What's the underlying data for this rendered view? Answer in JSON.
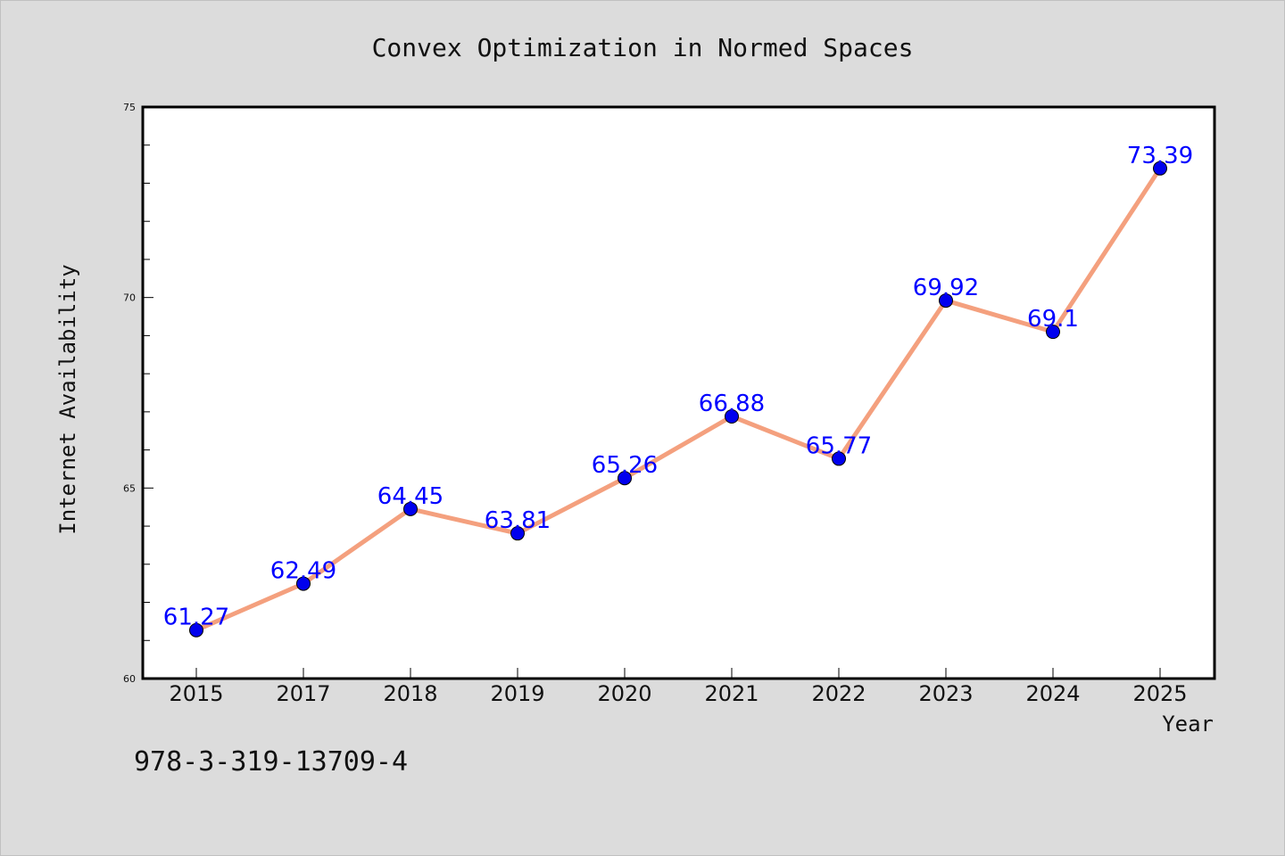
{
  "chart_data": {
    "type": "line",
    "title": "Convex Optimization in Normed Spaces",
    "xlabel": "Year",
    "ylabel": "Internet Availability",
    "categories": [
      "2015",
      "2017",
      "2018",
      "2019",
      "2020",
      "2021",
      "2022",
      "2023",
      "2024",
      "2025"
    ],
    "series": [
      {
        "values": [
          61.27,
          62.49,
          64.45,
          63.81,
          65.26,
          66.88,
          65.77,
          69.92,
          69.1,
          73.39
        ]
      }
    ],
    "data_labels": [
      "61.27",
      "62.49",
      "64.45",
      "63.81",
      "65.26",
      "66.88",
      "65.77",
      "69.92",
      "69.1",
      "73.39"
    ],
    "ylim": [
      60,
      75
    ],
    "yticks": [
      60,
      65,
      70,
      75
    ],
    "grid": false,
    "colors": {
      "line": "#f4a07e",
      "marker": "#0000ee",
      "labels": "#0000ff",
      "background": "#dcdcdc"
    }
  },
  "annotation": "978-3-319-13709-4"
}
